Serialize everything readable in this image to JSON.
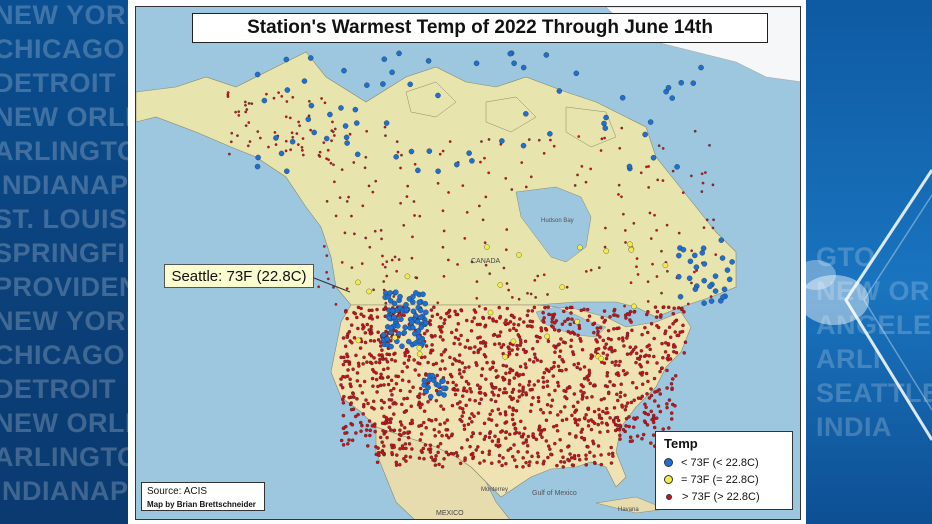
{
  "background": {
    "left_cities": [
      "NEW YORK",
      "CHICAGO",
      "DETROIT",
      "NEW ORLE",
      "ARLINGTON",
      "INDIANAPO",
      "ST. LOUIS",
      "SPRINGFI",
      "PROVIDENC",
      "NEW YORK",
      "CHICAGO",
      "DETROIT",
      "NEW ORLE",
      "ARLINGTON",
      "INDIANAPO"
    ],
    "right_cities": [
      "GTO",
      "NEW OR",
      "ANGELES",
      "ARLI",
      "SEATTLE",
      "INDIA"
    ]
  },
  "map": {
    "title": "Station's Warmest Temp of 2022 Through June 14th",
    "callout": "Seattle: 73F (22.8C)",
    "labels": {
      "hudson": "Hudson Bay",
      "canada": "CANADA",
      "gulf": "Gulf of\nMexico",
      "mexico": "MEXICO",
      "monterrey": "Monterrey",
      "havana": "Havana"
    },
    "legend": {
      "title": "Temp",
      "items": [
        {
          "label": "< 73F (< 22.8C)",
          "color": "#1f6fd1"
        },
        {
          "label": "= 73F (= 22.8C)",
          "color": "#f2ec4a"
        },
        {
          "label": "> 73F (> 22.8C)",
          "color": "#c8141a"
        }
      ]
    },
    "source": "Source: ACIS",
    "credit": "Map by Brian Brettschneider",
    "colors": {
      "water": "#9dc6df",
      "us_land": "#efe3b4",
      "canada_land": "#e6e3ad",
      "mexico_land": "#e7dcae",
      "ice": "#f6f8fa"
    }
  }
}
